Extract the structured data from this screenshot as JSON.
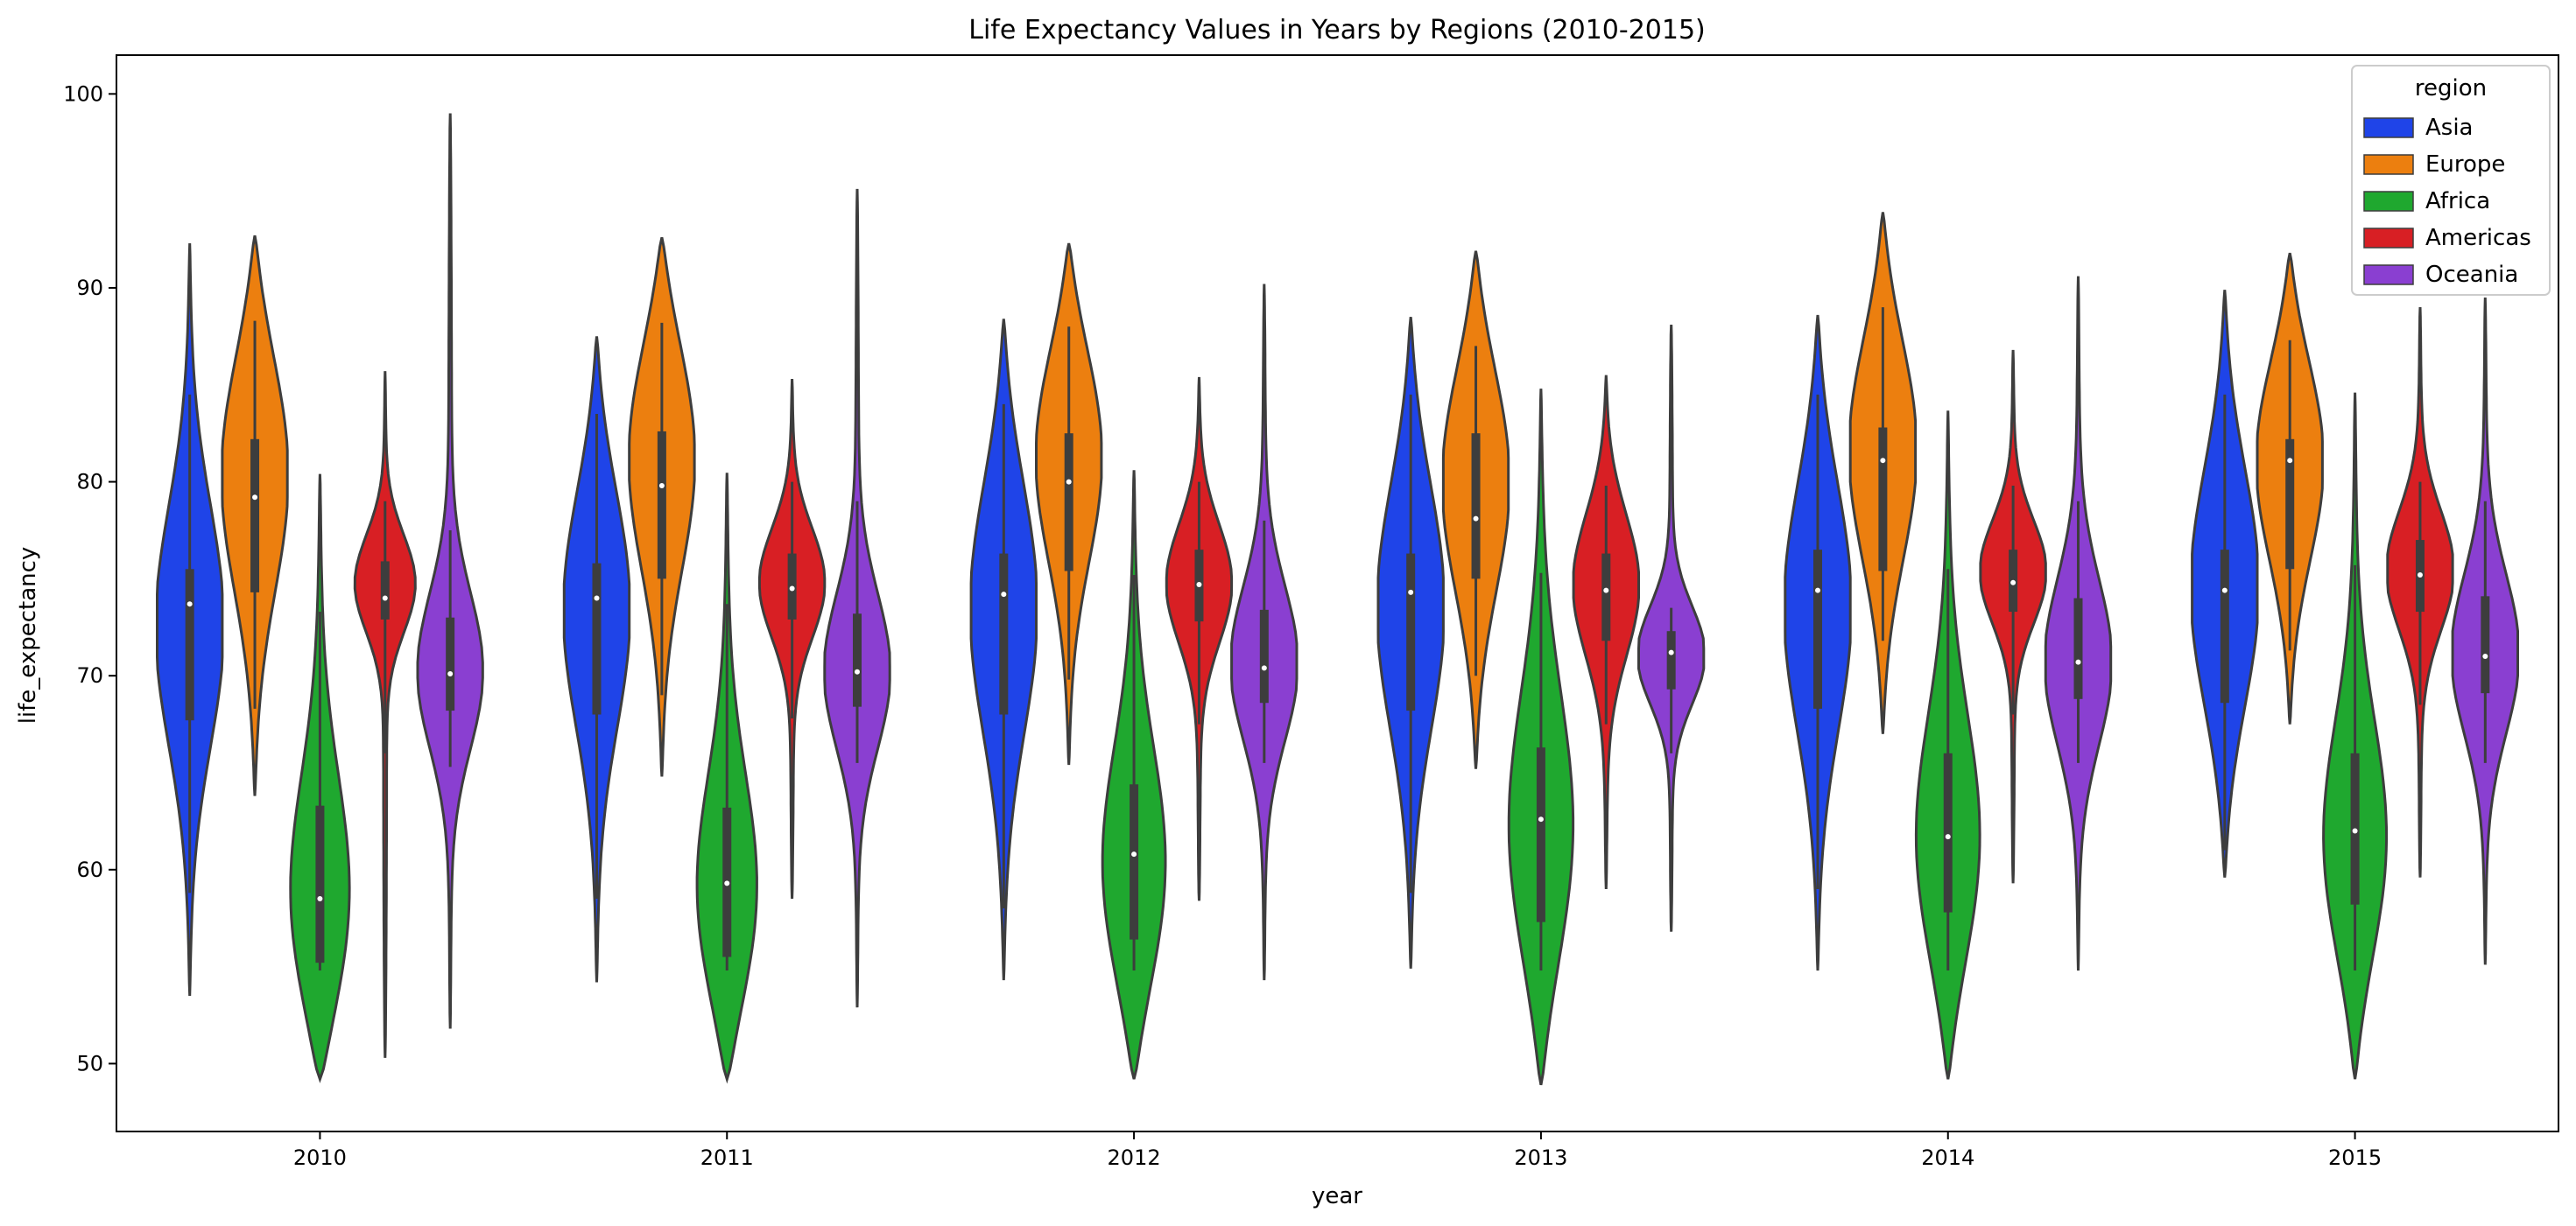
{
  "chart_data": {
    "type": "violin",
    "title": "Life Expectancy Values in Years by Regions (2010-2015)",
    "xlabel": "year",
    "ylabel": "life_expectancy",
    "ylim": [
      46.5,
      102
    ],
    "y_ticks": [
      50,
      60,
      70,
      80,
      90,
      100
    ],
    "categories": [
      "2010",
      "2011",
      "2012",
      "2013",
      "2014",
      "2015"
    ],
    "legend": {
      "title": "region",
      "placement": "top-right"
    },
    "series": [
      {
        "name": "Asia",
        "color": "#1f44e8",
        "values": [
          {
            "min": 53.5,
            "max": 92.3,
            "q1": 67.7,
            "median": 73.7,
            "q3": 75.5,
            "whisker_low": 58.8,
            "whisker_high": 84.5,
            "mode": 72.5
          },
          {
            "min": 54.2,
            "max": 87.5,
            "q1": 68.0,
            "median": 74.0,
            "q3": 75.8,
            "whisker_low": 58.5,
            "whisker_high": 83.5,
            "mode": 74.0
          },
          {
            "min": 54.3,
            "max": 88.4,
            "q1": 68.0,
            "median": 74.2,
            "q3": 76.3,
            "whisker_low": 58.0,
            "whisker_high": 84.0,
            "mode": 74.0
          },
          {
            "min": 54.9,
            "max": 88.5,
            "q1": 68.2,
            "median": 74.3,
            "q3": 76.3,
            "whisker_low": 58.8,
            "whisker_high": 84.5,
            "mode": 74.0
          },
          {
            "min": 54.8,
            "max": 88.6,
            "q1": 68.3,
            "median": 74.4,
            "q3": 76.5,
            "whisker_low": 59.0,
            "whisker_high": 84.5,
            "mode": 74.0
          },
          {
            "min": 59.6,
            "max": 89.9,
            "q1": 68.6,
            "median": 74.4,
            "q3": 76.5,
            "whisker_low": 61.0,
            "whisker_high": 84.5,
            "mode": 74.5
          }
        ]
      },
      {
        "name": "Europe",
        "color": "#ec7f0f",
        "values": [
          {
            "min": 63.8,
            "max": 92.7,
            "q1": 74.3,
            "median": 79.2,
            "q3": 82.2,
            "whisker_low": 68.3,
            "whisker_high": 88.3,
            "mode": 81.0
          },
          {
            "min": 64.8,
            "max": 92.6,
            "q1": 75.0,
            "median": 79.8,
            "q3": 82.6,
            "whisker_low": 69.0,
            "whisker_high": 88.2,
            "mode": 82.0
          },
          {
            "min": 65.4,
            "max": 92.3,
            "q1": 75.4,
            "median": 80.0,
            "q3": 82.5,
            "whisker_low": 69.8,
            "whisker_high": 88.0,
            "mode": 82.0
          },
          {
            "min": 65.2,
            "max": 91.9,
            "q1": 75.0,
            "median": 78.1,
            "q3": 82.5,
            "whisker_low": 70.0,
            "whisker_high": 87.0,
            "mode": 80.5
          },
          {
            "min": 67.0,
            "max": 93.9,
            "q1": 75.4,
            "median": 81.1,
            "q3": 82.8,
            "whisker_low": 71.8,
            "whisker_high": 89.0,
            "mode": 82.0
          },
          {
            "min": 67.5,
            "max": 91.8,
            "q1": 75.5,
            "median": 81.1,
            "q3": 82.2,
            "whisker_low": 71.3,
            "whisker_high": 87.3,
            "mode": 81.5
          }
        ]
      },
      {
        "name": "Africa",
        "color": "#1fa82f",
        "values": [
          {
            "min": 49.2,
            "max": 80.4,
            "q1": 55.2,
            "median": 58.5,
            "q3": 63.3,
            "whisker_low": 54.8,
            "whisker_high": 73.3,
            "mode": 57.0
          },
          {
            "min": 49.2,
            "max": 80.4,
            "q1": 55.5,
            "median": 59.3,
            "q3": 63.2,
            "whisker_low": 54.8,
            "whisker_high": 73.7,
            "mode": 57.5
          },
          {
            "min": 49.2,
            "max": 80.6,
            "q1": 56.4,
            "median": 60.8,
            "q3": 64.4,
            "whisker_low": 54.8,
            "whisker_high": 75.2,
            "mode": 59.0
          },
          {
            "min": 48.9,
            "max": 84.8,
            "q1": 57.3,
            "median": 62.6,
            "q3": 66.3,
            "whisker_low": 54.8,
            "whisker_high": 75.3,
            "mode": 61.0
          },
          {
            "min": 49.2,
            "max": 83.6,
            "q1": 57.8,
            "median": 61.7,
            "q3": 66.0,
            "whisker_low": 54.8,
            "whisker_high": 75.5,
            "mode": 60.5
          },
          {
            "min": 49.2,
            "max": 84.6,
            "q1": 58.2,
            "median": 62.0,
            "q3": 66.0,
            "whisker_low": 54.8,
            "whisker_high": 75.7,
            "mode": 60.5
          }
        ]
      },
      {
        "name": "Americas",
        "color": "#d81f24",
        "values": [
          {
            "min": 50.3,
            "max": 85.7,
            "q1": 72.9,
            "median": 74.0,
            "q3": 75.9,
            "whisker_low": 66.0,
            "whisker_high": 79.0,
            "mode": 75.0
          },
          {
            "min": 58.5,
            "max": 85.3,
            "q1": 72.9,
            "median": 74.5,
            "q3": 76.3,
            "whisker_low": 67.8,
            "whisker_high": 80.0,
            "mode": 75.0
          },
          {
            "min": 58.4,
            "max": 85.4,
            "q1": 72.8,
            "median": 74.7,
            "q3": 76.5,
            "whisker_low": 67.5,
            "whisker_high": 80.0,
            "mode": 75.0
          },
          {
            "min": 59.0,
            "max": 85.5,
            "q1": 71.8,
            "median": 74.4,
            "q3": 76.3,
            "whisker_low": 67.5,
            "whisker_high": 79.8,
            "mode": 75.0
          },
          {
            "min": 59.3,
            "max": 86.8,
            "q1": 73.3,
            "median": 74.8,
            "q3": 76.5,
            "whisker_low": 68.0,
            "whisker_high": 79.8,
            "mode": 75.5
          },
          {
            "min": 59.6,
            "max": 89.0,
            "q1": 73.3,
            "median": 75.2,
            "q3": 77.0,
            "whisker_low": 68.5,
            "whisker_high": 80.0,
            "mode": 75.5
          }
        ]
      },
      {
        "name": "Oceania",
        "color": "#8a3fd1",
        "values": [
          {
            "min": 51.8,
            "max": 99.0,
            "q1": 68.2,
            "median": 70.1,
            "q3": 73.0,
            "whisker_low": 65.3,
            "whisker_high": 77.5,
            "mode": 70.0
          },
          {
            "min": 52.9,
            "max": 95.1,
            "q1": 68.4,
            "median": 70.2,
            "q3": 73.2,
            "whisker_low": 65.5,
            "whisker_high": 79.0,
            "mode": 70.0
          },
          {
            "min": 54.3,
            "max": 90.2,
            "q1": 68.6,
            "median": 70.4,
            "q3": 73.4,
            "whisker_low": 65.5,
            "whisker_high": 78.0,
            "mode": 70.5
          },
          {
            "min": 56.8,
            "max": 88.1,
            "q1": 69.3,
            "median": 71.2,
            "q3": 72.3,
            "whisker_low": 66.0,
            "whisker_high": 73.5,
            "mode": 71.0
          },
          {
            "min": 54.8,
            "max": 90.6,
            "q1": 68.8,
            "median": 70.7,
            "q3": 74.0,
            "whisker_low": 65.5,
            "whisker_high": 79.0,
            "mode": 70.5
          },
          {
            "min": 55.1,
            "max": 89.5,
            "q1": 69.1,
            "median": 71.0,
            "q3": 74.1,
            "whisker_low": 65.5,
            "whisker_high": 79.0,
            "mode": 71.0
          }
        ]
      }
    ]
  }
}
